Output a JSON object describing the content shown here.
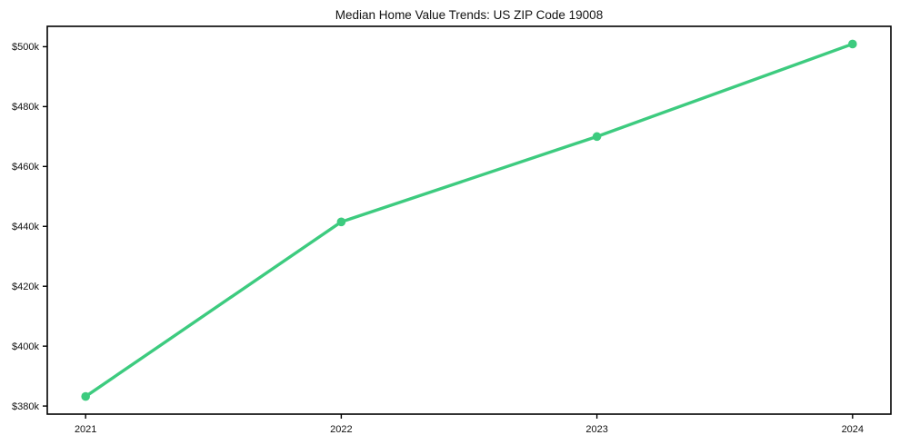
{
  "figure": {
    "background": "#ffffff"
  },
  "colors": {
    "line": "#3dcb7f",
    "marker": "#3dcb7f",
    "spine": "#000000",
    "text": "#111111"
  },
  "chart_data": {
    "type": "line",
    "title": "Median Home Value Trends: US ZIP Code 19008",
    "xlabel": "",
    "ylabel": "",
    "x": [
      2021,
      2022,
      2023,
      2024
    ],
    "series": [
      {
        "name": "Median Home Value",
        "values": [
          383200,
          441500,
          470000,
          500900
        ]
      }
    ],
    "xticks": [
      2021,
      2022,
      2023,
      2024
    ],
    "xtick_labels": [
      "2021",
      "2022",
      "2023",
      "2024"
    ],
    "yticks": [
      380000,
      400000,
      420000,
      440000,
      460000,
      480000,
      500000
    ],
    "ytick_labels": [
      "$380k",
      "$400k",
      "$420k",
      "$440k",
      "$460k",
      "$480k",
      "$500k"
    ],
    "xlim": [
      2020.85,
      2024.15
    ],
    "ylim": [
      377300,
      506800
    ],
    "grid": false,
    "legend": false,
    "marker": "circle",
    "line_width": 3.4,
    "marker_radius": 4.8
  }
}
